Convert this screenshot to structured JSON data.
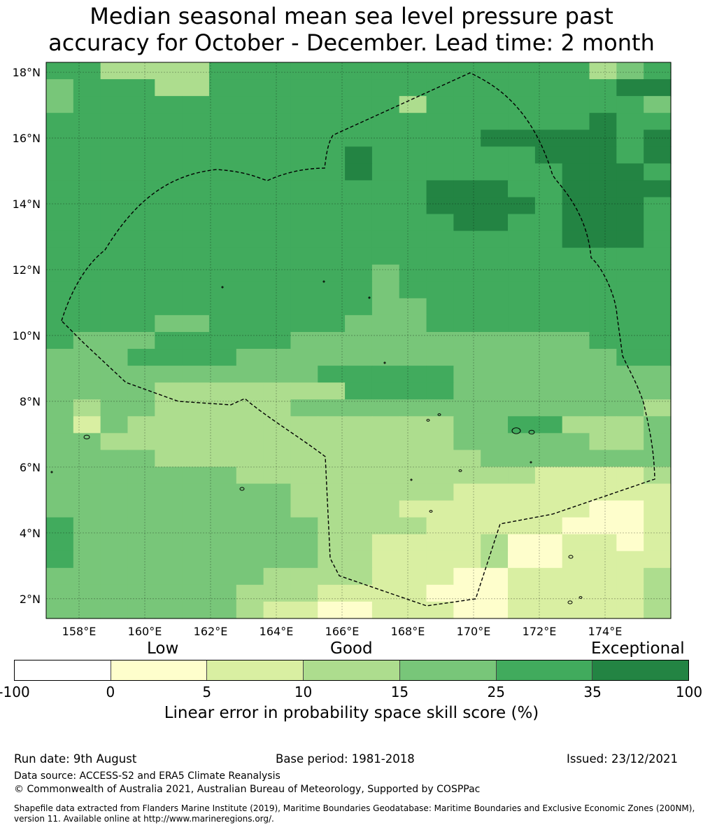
{
  "title_line1": "Median seasonal mean sea level pressure past",
  "title_line2": "accuracy for October - December. Lead time: 2 month",
  "map": {
    "lon_range": [
      157,
      176
    ],
    "lat_range": [
      1.4,
      18.3
    ],
    "lon_labels": [
      "158°E",
      "160°E",
      "162°E",
      "164°E",
      "166°E",
      "168°E",
      "170°E",
      "172°E",
      "174°E"
    ],
    "lon_values": [
      158,
      160,
      162,
      164,
      166,
      168,
      170,
      172,
      174
    ],
    "lat_labels": [
      "18°N",
      "16°N",
      "14°N",
      "12°N",
      "10°N",
      "8°N",
      "6°N",
      "4°N",
      "2°N"
    ],
    "lat_values": [
      18,
      16,
      14,
      12,
      10,
      8,
      6,
      4,
      2
    ],
    "colors": {
      "negative": "#ffffff",
      "c0_5": "#fefecc",
      "c5_10": "#d9efa2",
      "c10_15": "#addd8e",
      "c15_25": "#78c679",
      "c25_35": "#41ab5d",
      "c35_100": "#238443"
    }
  },
  "colorbar": {
    "word_low": "Low",
    "word_good": "Good",
    "word_exceptional": "Exceptional",
    "ticks": [
      "-100",
      "0",
      "5",
      "10",
      "15",
      "25",
      "35",
      "100"
    ],
    "colors": [
      "#ffffff",
      "#fefecc",
      "#d9efa2",
      "#addd8e",
      "#78c679",
      "#41ab5d",
      "#238443"
    ],
    "label": "Linear error in probability space skill score (%)"
  },
  "footer": {
    "run_date": "Run date: 9th August",
    "base_period": "Base period: 1981-2018",
    "issued": "Issued: 23/12/2021",
    "data_source": "Data source: ACCESS-S2 and ERA5 Climate Reanalysis",
    "copyright": "© Commonwealth of Australia 2021, Australian Bureau of Meteorology, Supported by COSPPac",
    "shapefile": "Shapefile data extracted from Flanders Marine Institute (2019), Maritime Boundaries Geodatabase: Maritime Boundaries and Exclusive Economic Zones (200NM), version 11. Available online at http://www.marineregions.org/."
  }
}
